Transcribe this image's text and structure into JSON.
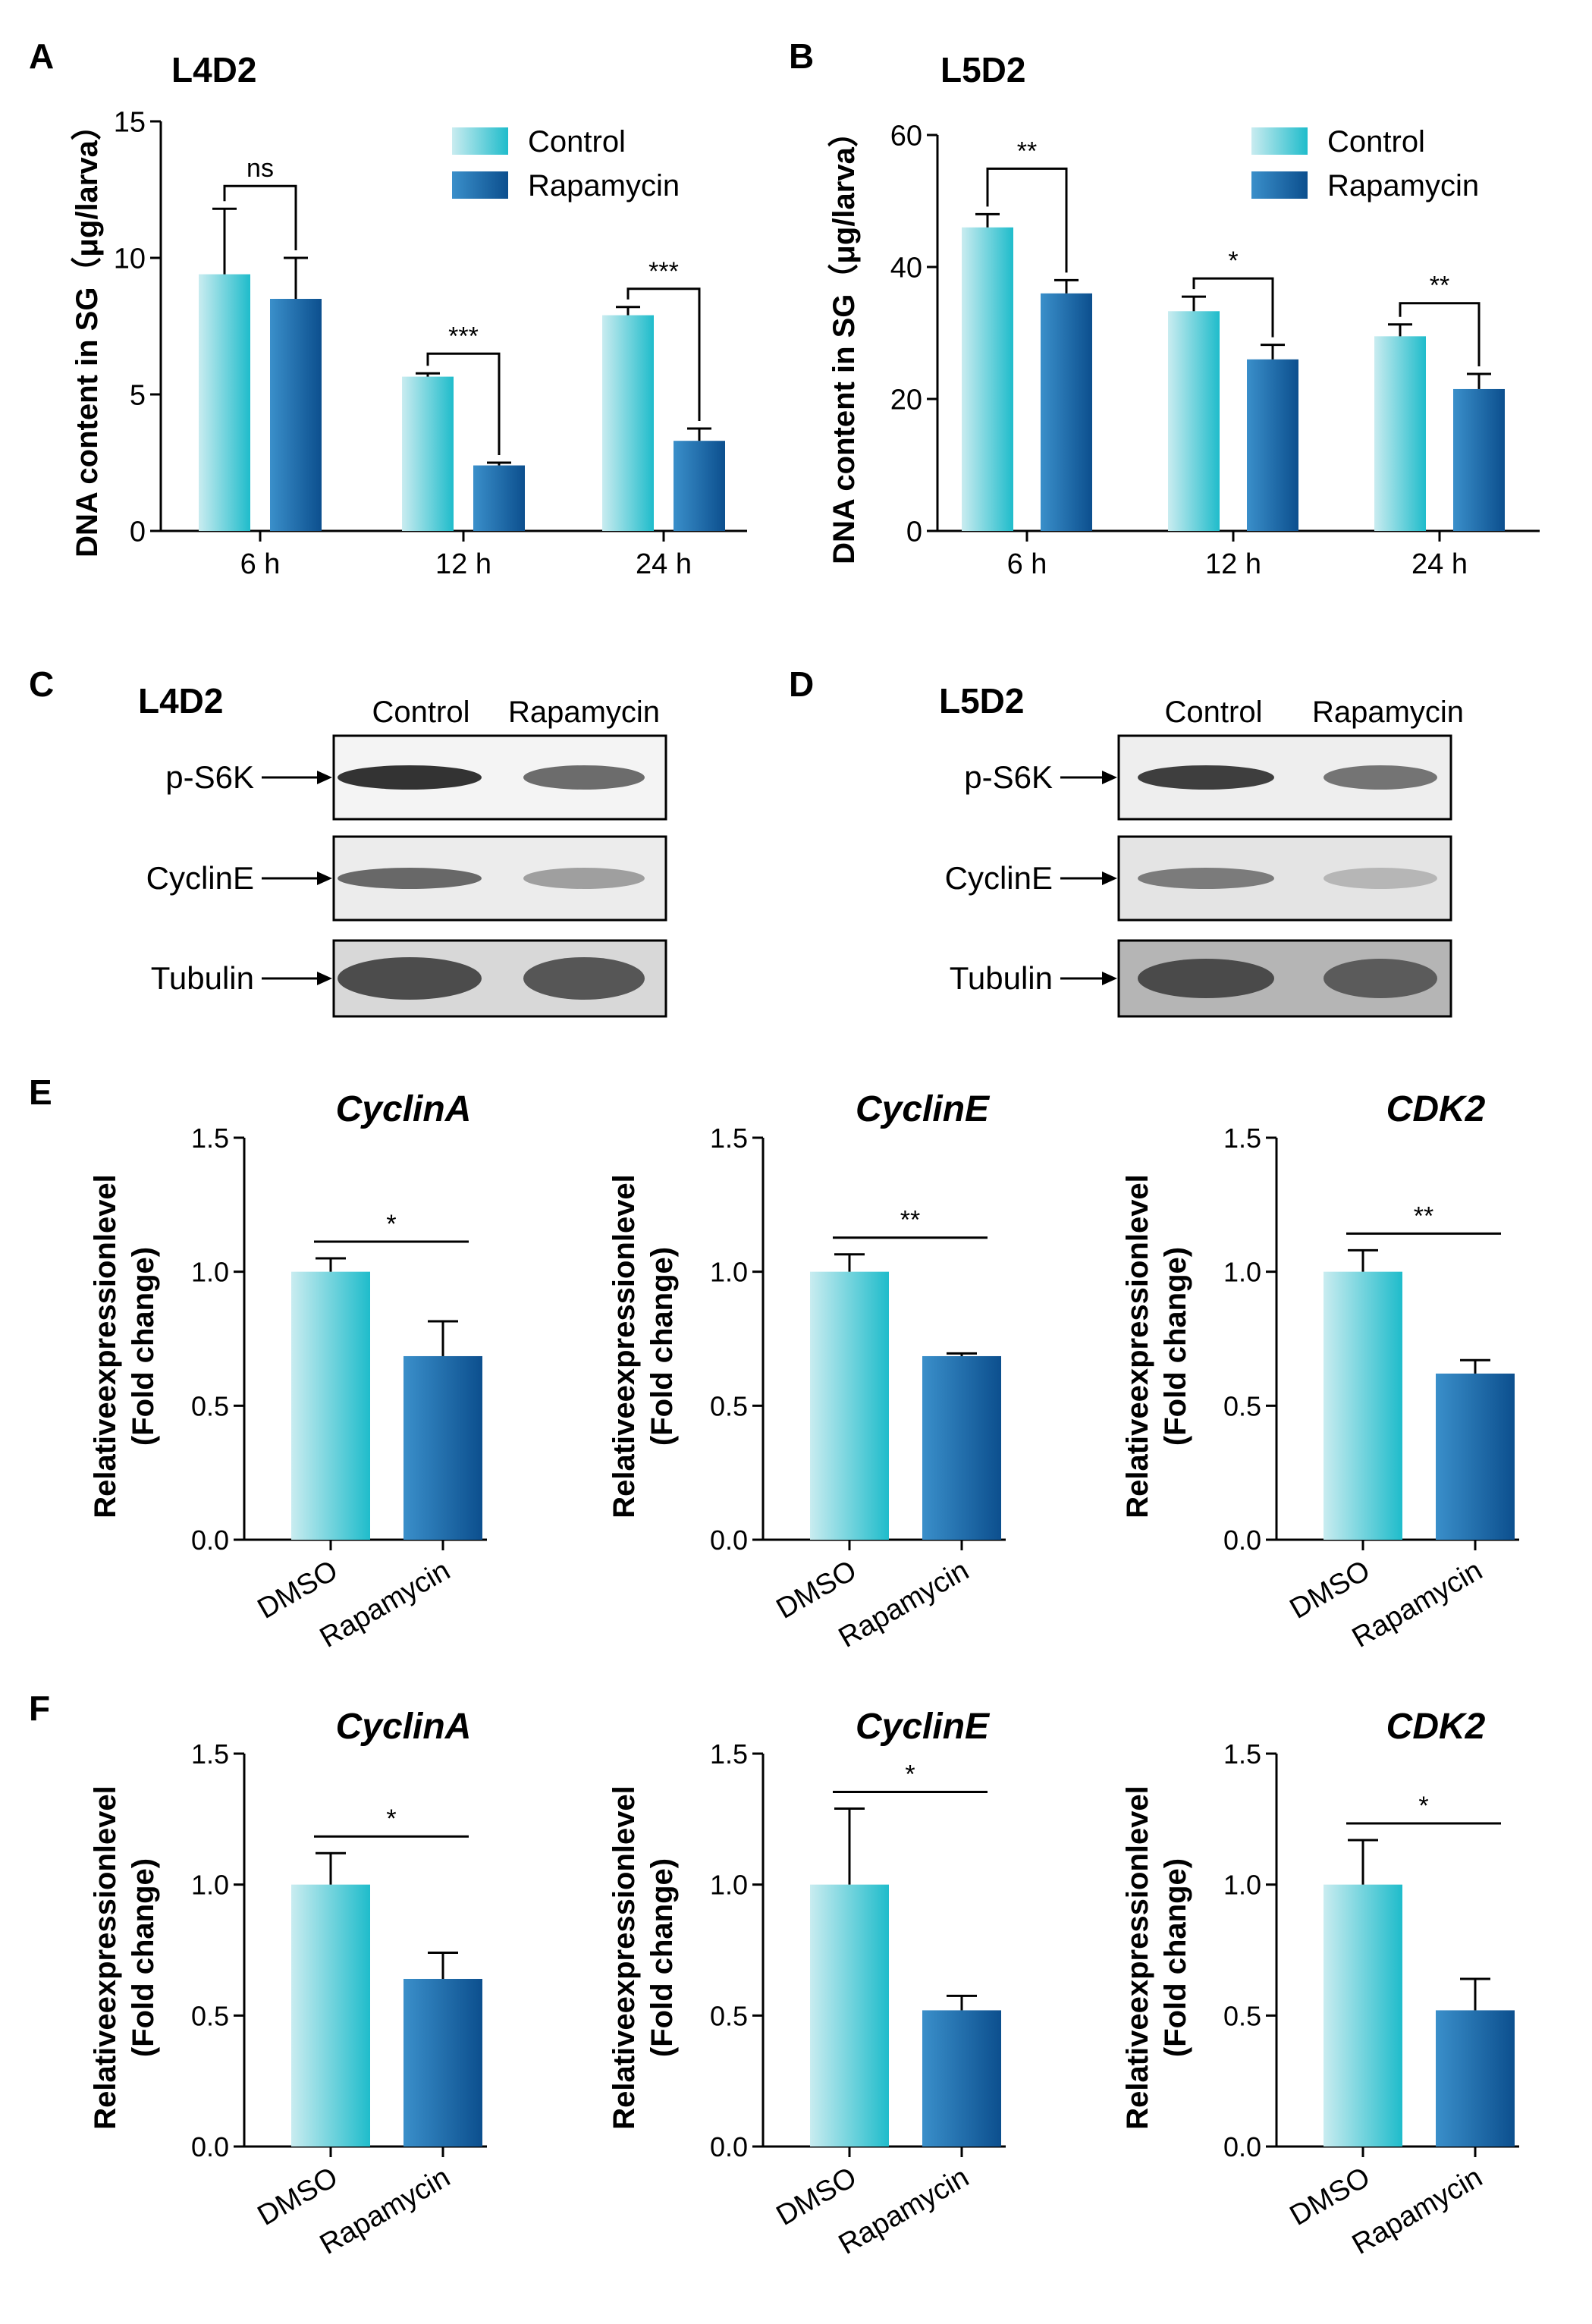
{
  "colors": {
    "control_light": "#c9ecf0",
    "control_dark": "#1fbccb",
    "rapa_light": "#3a8fca",
    "rapa_dark": "#0c4f8e",
    "axis": "#000000"
  },
  "panel_labels": [
    "A",
    "B",
    "C",
    "D",
    "E",
    "F"
  ],
  "western": {
    "C": {
      "title": "L4D2",
      "lanes": [
        "Control",
        "Rapamycin"
      ],
      "rows": [
        "p-S6K",
        "CyclinE",
        "Tubulin"
      ]
    },
    "D": {
      "title": "L5D2",
      "lanes": [
        "Control",
        "Rapamycin"
      ],
      "rows": [
        "p-S6K",
        "CyclinE",
        "Tubulin"
      ]
    }
  },
  "chart_data": [
    {
      "id": "A",
      "type": "bar",
      "title": "L4D2",
      "xlabel": "",
      "ylabel": "DNA content in SG（μg/larva）",
      "categories": [
        "6 h",
        "12 h",
        "24 h"
      ],
      "series": [
        {
          "name": "Control",
          "values": [
            9.4,
            5.65,
            7.9
          ],
          "errors": [
            2.4,
            0.12,
            0.3
          ]
        },
        {
          "name": "Rapamycin",
          "values": [
            8.5,
            2.4,
            3.3
          ],
          "errors": [
            1.5,
            0.1,
            0.45
          ]
        }
      ],
      "ylim": [
        0,
        15
      ],
      "yticks": [
        0,
        5,
        10,
        15
      ],
      "significance": [
        "ns",
        "***",
        "***"
      ],
      "legend": "top-right"
    },
    {
      "id": "B",
      "type": "bar",
      "title": "L5D2",
      "xlabel": "",
      "ylabel": "DNA content in SG（μg/larva）",
      "categories": [
        "6 h",
        "12 h",
        "24 h"
      ],
      "series": [
        {
          "name": "Control",
          "values": [
            46,
            33.3,
            29.5
          ],
          "errors": [
            2,
            2.2,
            1.8
          ]
        },
        {
          "name": "Rapamycin",
          "values": [
            36,
            26,
            21.5
          ],
          "errors": [
            2,
            2.2,
            2.3
          ]
        }
      ],
      "ylim": [
        0,
        60
      ],
      "yticks": [
        0,
        20,
        40,
        60
      ],
      "significance": [
        "**",
        "*",
        "**"
      ],
      "legend": "top-right"
    },
    {
      "id": "E1",
      "type": "bar",
      "title": "CyclinA",
      "ylabel": "Relativeexpressionlevel (Fold change)",
      "categories": [
        "DMSO",
        "Rapamycin"
      ],
      "values": [
        1.0,
        0.685
      ],
      "errors": [
        0.05,
        0.13
      ],
      "ylim": [
        0,
        1.5
      ],
      "yticks": [
        "0.0",
        "0.5",
        "1.0",
        "1.5"
      ],
      "significance": "*"
    },
    {
      "id": "E2",
      "type": "bar",
      "title": "CyclinE",
      "ylabel": "Relativeexpressionlevel (Fold change)",
      "categories": [
        "DMSO",
        "Rapamycin"
      ],
      "values": [
        1.0,
        0.685
      ],
      "errors": [
        0.065,
        0.01
      ],
      "ylim": [
        0,
        1.5
      ],
      "yticks": [
        "0.0",
        "0.5",
        "1.0",
        "1.5"
      ],
      "significance": "**"
    },
    {
      "id": "E3",
      "type": "bar",
      "title": "CDK2",
      "ylabel": "Relativeexpressionlevel (Fold change)",
      "categories": [
        "DMSO",
        "Rapamycin"
      ],
      "values": [
        1.0,
        0.62
      ],
      "errors": [
        0.08,
        0.05
      ],
      "ylim": [
        0,
        1.5
      ],
      "yticks": [
        "0.0",
        "0.5",
        "1.0",
        "1.5"
      ],
      "significance": "**"
    },
    {
      "id": "F1",
      "type": "bar",
      "title": "CyclinA",
      "ylabel": "Relativeexpressionlevel (Fold change)",
      "categories": [
        "DMSO",
        "Rapamycin"
      ],
      "values": [
        1.0,
        0.64
      ],
      "errors": [
        0.12,
        0.1
      ],
      "ylim": [
        0,
        1.5
      ],
      "yticks": [
        "0.0",
        "0.5",
        "1.0",
        "1.5"
      ],
      "significance": "*"
    },
    {
      "id": "F2",
      "type": "bar",
      "title": "CyclinE",
      "ylabel": "Relativeexpressionlevel (Fold change)",
      "categories": [
        "DMSO",
        "Rapamycin"
      ],
      "values": [
        1.0,
        0.52
      ],
      "errors": [
        0.29,
        0.055
      ],
      "ylim": [
        0,
        1.5
      ],
      "yticks": [
        "0.0",
        "0.5",
        "1.0",
        "1.5"
      ],
      "significance": "*"
    },
    {
      "id": "F3",
      "type": "bar",
      "title": "CDK2",
      "ylabel": "Relativeexpressionlevel (Fold change)",
      "categories": [
        "DMSO",
        "Rapamycin"
      ],
      "values": [
        1.0,
        0.52
      ],
      "errors": [
        0.17,
        0.12
      ],
      "ylim": [
        0,
        1.5
      ],
      "yticks": [
        "0.0",
        "0.5",
        "1.0",
        "1.5"
      ],
      "significance": "*"
    }
  ]
}
